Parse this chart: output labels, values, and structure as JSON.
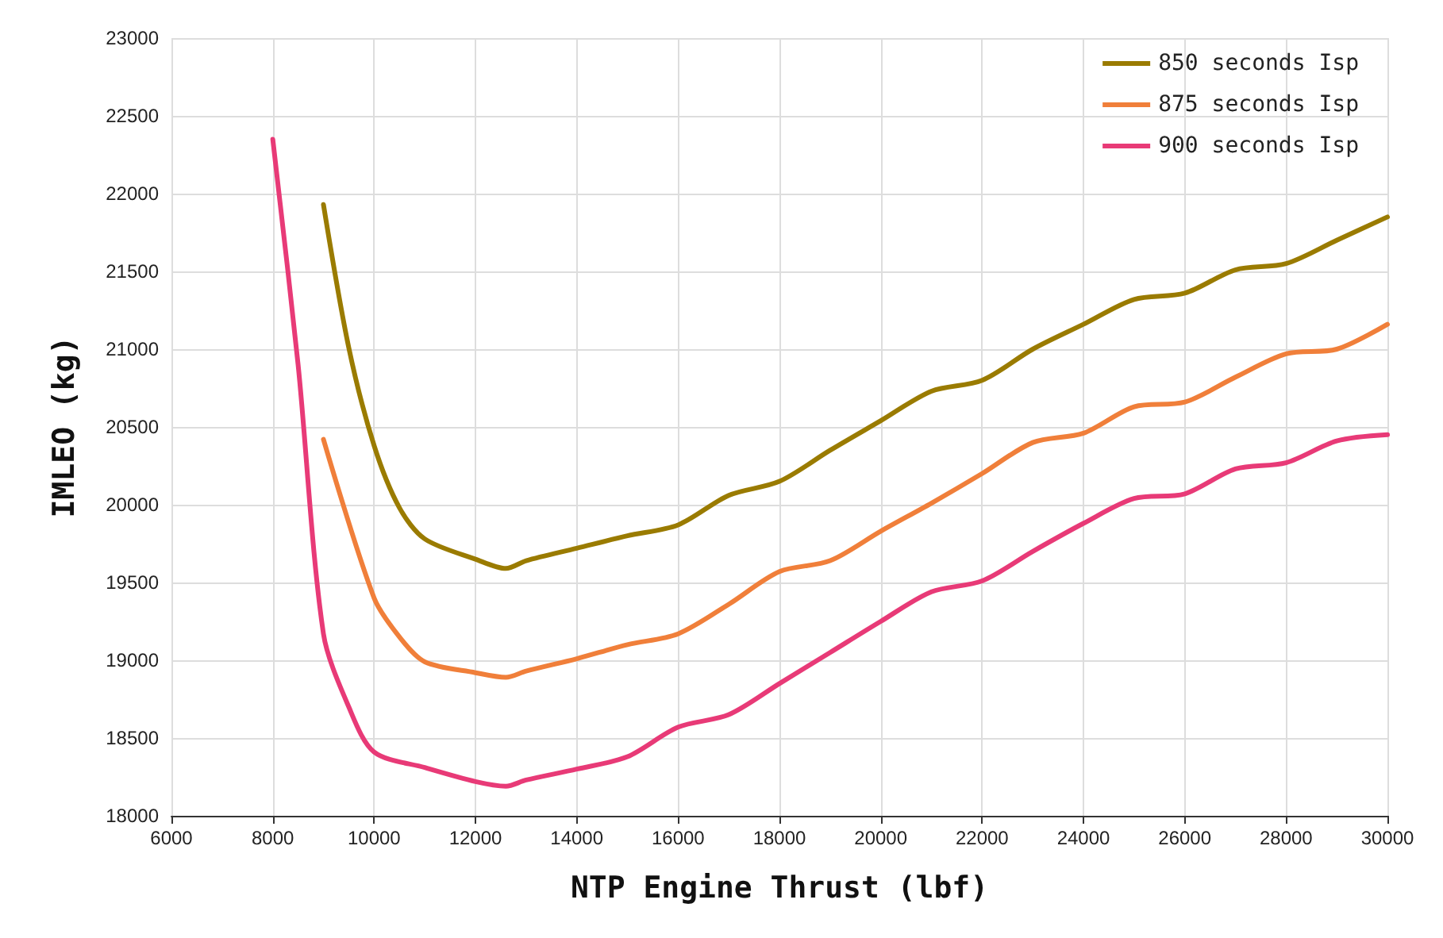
{
  "chart_data": {
    "type": "line",
    "xlabel": "NTP Engine Thrust (lbf)",
    "ylabel": "IMLEO (kg)",
    "xlim": [
      6000,
      30000
    ],
    "xticks": [
      6000,
      8000,
      10000,
      12000,
      14000,
      16000,
      18000,
      20000,
      22000,
      24000,
      26000,
      28000,
      30000
    ],
    "ylim": [
      18000,
      23000
    ],
    "yticks": [
      18000,
      18500,
      19000,
      19500,
      20000,
      20500,
      21000,
      21500,
      22000,
      22500,
      23000
    ],
    "grid": true,
    "legend": "top right",
    "marker": "none",
    "line_style": "solid",
    "series": [
      {
        "name": "850 seconds Isp",
        "color": "#9a7b00",
        "x": [
          9000,
          9500,
          10000,
          10500,
          11000,
          12000,
          12600,
          13000,
          14000,
          15000,
          16000,
          17000,
          18000,
          19000,
          20000,
          21000,
          22000,
          23000,
          24000,
          25000,
          26000,
          27000,
          28000,
          29000,
          30000
        ],
        "values": [
          21930,
          21010,
          20380,
          19980,
          19780,
          19650,
          19590,
          19640,
          19720,
          19800,
          19870,
          20060,
          20150,
          20350,
          20540,
          20730,
          20800,
          21000,
          21160,
          21320,
          21360,
          21510,
          21550,
          21700,
          21850
        ]
      },
      {
        "name": "875 seconds Isp",
        "color": "#f07f3a",
        "x": [
          9000,
          10000,
          10500,
          11000,
          12000,
          12600,
          13000,
          14000,
          15000,
          16000,
          17000,
          18000,
          19000,
          20000,
          21000,
          22000,
          23000,
          24000,
          25000,
          26000,
          27000,
          28000,
          29000,
          30000
        ],
        "values": [
          20420,
          19400,
          19150,
          18990,
          18920,
          18890,
          18930,
          19010,
          19100,
          19170,
          19360,
          19570,
          19640,
          19830,
          20010,
          20200,
          20400,
          20460,
          20630,
          20660,
          20820,
          20970,
          21000,
          21160
        ]
      },
      {
        "name": "900 seconds Isp",
        "color": "#e83a77",
        "x": [
          8000,
          8500,
          9000,
          9500,
          10000,
          11000,
          12000,
          12600,
          13000,
          14000,
          15000,
          16000,
          17000,
          18000,
          19000,
          20000,
          21000,
          22000,
          23000,
          24000,
          25000,
          26000,
          27000,
          28000,
          29000,
          30000
        ],
        "values": [
          22350,
          20900,
          19170,
          18700,
          18410,
          18310,
          18220,
          18190,
          18230,
          18300,
          18380,
          18570,
          18650,
          18850,
          19050,
          19250,
          19440,
          19510,
          19700,
          19880,
          20040,
          20070,
          20230,
          20270,
          20410,
          20450
        ]
      }
    ]
  }
}
